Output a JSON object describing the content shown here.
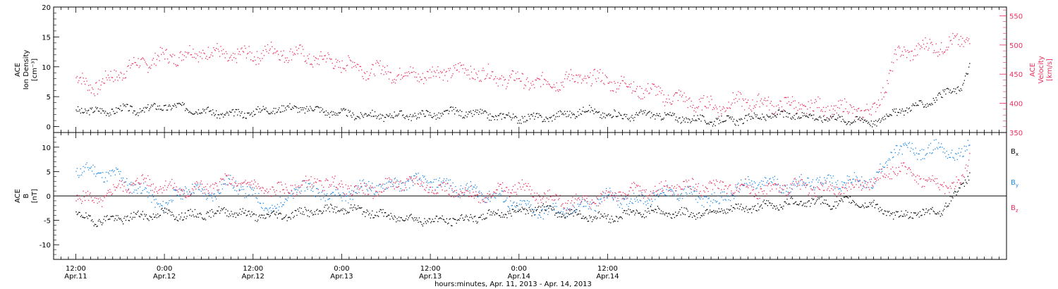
{
  "chart_data": [
    {
      "type": "scatter",
      "panel": "top",
      "left_axis": {
        "label_lines": [
          "ACE",
          "Ion Density",
          "[cm⁻³]"
        ],
        "ylim": [
          -1,
          20
        ],
        "ticks": [
          0,
          5,
          10,
          15,
          20
        ],
        "color": "#000000"
      },
      "right_axis": {
        "label_lines": [
          "ACE",
          "Velocity",
          "[km/s]"
        ],
        "ylim": [
          350,
          565
        ],
        "ticks": [
          350,
          400,
          450,
          500,
          550
        ],
        "color": "#e8305f"
      },
      "series": [
        {
          "axis": "left",
          "color": "#000000",
          "x": [
            0,
            3,
            6,
            9,
            12,
            15,
            18,
            21,
            24,
            27,
            30,
            33,
            36,
            39,
            42,
            45,
            48,
            51,
            54,
            57,
            60,
            63,
            66,
            69,
            72,
            75,
            78,
            81,
            84,
            87,
            90,
            93,
            96,
            99,
            102,
            105,
            108,
            111,
            114,
            117,
            120,
            121
          ],
          "y": [
            3.0,
            2.5,
            3.0,
            2.8,
            3.5,
            3.2,
            2.5,
            2.0,
            2.5,
            3.0,
            3.2,
            2.8,
            2.2,
            2.0,
            1.8,
            2.0,
            2.0,
            2.5,
            2.2,
            1.8,
            1.5,
            1.5,
            2.0,
            2.8,
            2.0,
            1.8,
            2.2,
            1.5,
            1.2,
            1.0,
            1.2,
            1.8,
            2.0,
            1.8,
            1.5,
            1.2,
            0.8,
            2.5,
            3.5,
            5.0,
            7.0,
            10.0
          ]
        },
        {
          "axis": "right",
          "color": "#e8305f",
          "x": [
            0,
            3,
            6,
            9,
            12,
            15,
            18,
            21,
            24,
            27,
            30,
            33,
            36,
            39,
            42,
            45,
            48,
            51,
            54,
            57,
            60,
            63,
            66,
            69,
            72,
            75,
            78,
            81,
            84,
            87,
            90,
            93,
            96,
            99,
            102,
            105,
            108,
            111,
            114,
            117,
            120,
            121
          ],
          "y": [
            440,
            430,
            455,
            470,
            480,
            485,
            490,
            480,
            485,
            490,
            485,
            475,
            470,
            460,
            455,
            450,
            450,
            458,
            455,
            445,
            440,
            435,
            440,
            445,
            440,
            430,
            420,
            410,
            400,
            395,
            405,
            400,
            398,
            395,
            392,
            390,
            385,
            480,
            495,
            500,
            505,
            520
          ]
        }
      ]
    },
    {
      "type": "scatter",
      "panel": "bottom",
      "left_axis": {
        "label_lines": [
          "ACE",
          "B",
          "[nT]"
        ],
        "ylim": [
          -13,
          13
        ],
        "ticks": [
          -10,
          -5,
          0,
          5,
          10
        ],
        "color": "#000000"
      },
      "zero_line": true,
      "x_axis": {
        "label": "hours:minutes, Apr. 11, 2013 - Apr. 14, 2013",
        "xlim": [
          -3,
          126
        ],
        "major_ticks": [
          {
            "x": 0,
            "time": "12:00",
            "date": "Apr.11"
          },
          {
            "x": 12,
            "time": "0:00",
            "date": "Apr.12"
          },
          {
            "x": 24,
            "time": "12:00",
            "date": "Apr.12"
          },
          {
            "x": 36,
            "time": "0:00",
            "date": "Apr.13"
          },
          {
            "x": 48,
            "time": "12:00",
            "date": "Apr.13"
          },
          {
            "x": 60,
            "time": "0:00",
            "date": "Apr.14"
          },
          {
            "x": 72,
            "time": "12:00",
            "date": "Apr.14"
          }
        ]
      },
      "series": [
        {
          "name": "Bx",
          "label_main": "B",
          "label_sub": "x",
          "color": "#000000",
          "x": [
            0,
            3,
            6,
            9,
            12,
            15,
            18,
            21,
            24,
            27,
            30,
            33,
            36,
            39,
            42,
            45,
            48,
            51,
            54,
            57,
            60,
            63,
            66,
            69,
            72,
            75,
            78,
            81,
            84,
            87,
            90,
            93,
            96,
            99,
            102,
            105,
            108,
            111,
            114,
            117,
            120,
            121
          ],
          "y": [
            -4,
            -5,
            -4.5,
            -4,
            -3.5,
            -4,
            -3.5,
            -3,
            -4,
            -4,
            -3.5,
            -3,
            -2.5,
            -3,
            -4,
            -4.5,
            -5,
            -4.8,
            -4.5,
            -3.5,
            -3,
            -2.5,
            -3.5,
            -4,
            -4.5,
            -3.5,
            -3,
            -3.5,
            -3.5,
            -3,
            -2.5,
            -2,
            -1.5,
            -1,
            -1.5,
            -1,
            -2,
            -4,
            -3.5,
            -3,
            2,
            5
          ]
        },
        {
          "name": "By",
          "label_main": "B",
          "label_sub": "y",
          "color": "#1e8ae6",
          "x": [
            0,
            3,
            6,
            9,
            12,
            15,
            18,
            21,
            24,
            27,
            30,
            33,
            36,
            39,
            42,
            45,
            48,
            51,
            54,
            57,
            60,
            63,
            66,
            69,
            72,
            75,
            78,
            81,
            84,
            87,
            90,
            93,
            96,
            99,
            102,
            105,
            108,
            111,
            114,
            117,
            120,
            121
          ],
          "y": [
            5.5,
            5,
            4,
            1,
            -2,
            2,
            0,
            3,
            0,
            -3,
            2,
            1,
            0,
            2,
            2,
            3,
            3,
            2,
            1,
            0,
            -2,
            -3,
            -3,
            -2,
            0,
            -1,
            0,
            1,
            0,
            -1,
            2,
            3,
            2,
            3,
            3,
            3,
            3,
            10,
            9,
            10,
            8,
            11
          ]
        },
        {
          "name": "Bz",
          "label_main": "B",
          "label_sub": "z",
          "color": "#e8305f",
          "x": [
            0,
            3,
            6,
            9,
            12,
            15,
            18,
            21,
            24,
            27,
            30,
            33,
            36,
            39,
            42,
            45,
            48,
            51,
            54,
            57,
            60,
            63,
            66,
            69,
            72,
            75,
            78,
            81,
            84,
            87,
            90,
            93,
            96,
            99,
            102,
            105,
            108,
            111,
            114,
            117,
            120,
            121
          ],
          "y": [
            0,
            -1,
            2,
            3,
            2,
            1,
            2,
            3,
            2,
            1,
            2,
            3,
            2,
            1,
            2,
            3,
            2,
            1,
            0,
            1,
            2,
            0,
            -1,
            -1,
            0,
            1,
            1,
            2,
            2,
            2,
            2,
            1,
            2,
            2,
            1,
            2,
            3,
            6,
            4,
            2,
            3,
            8
          ]
        }
      ]
    }
  ]
}
